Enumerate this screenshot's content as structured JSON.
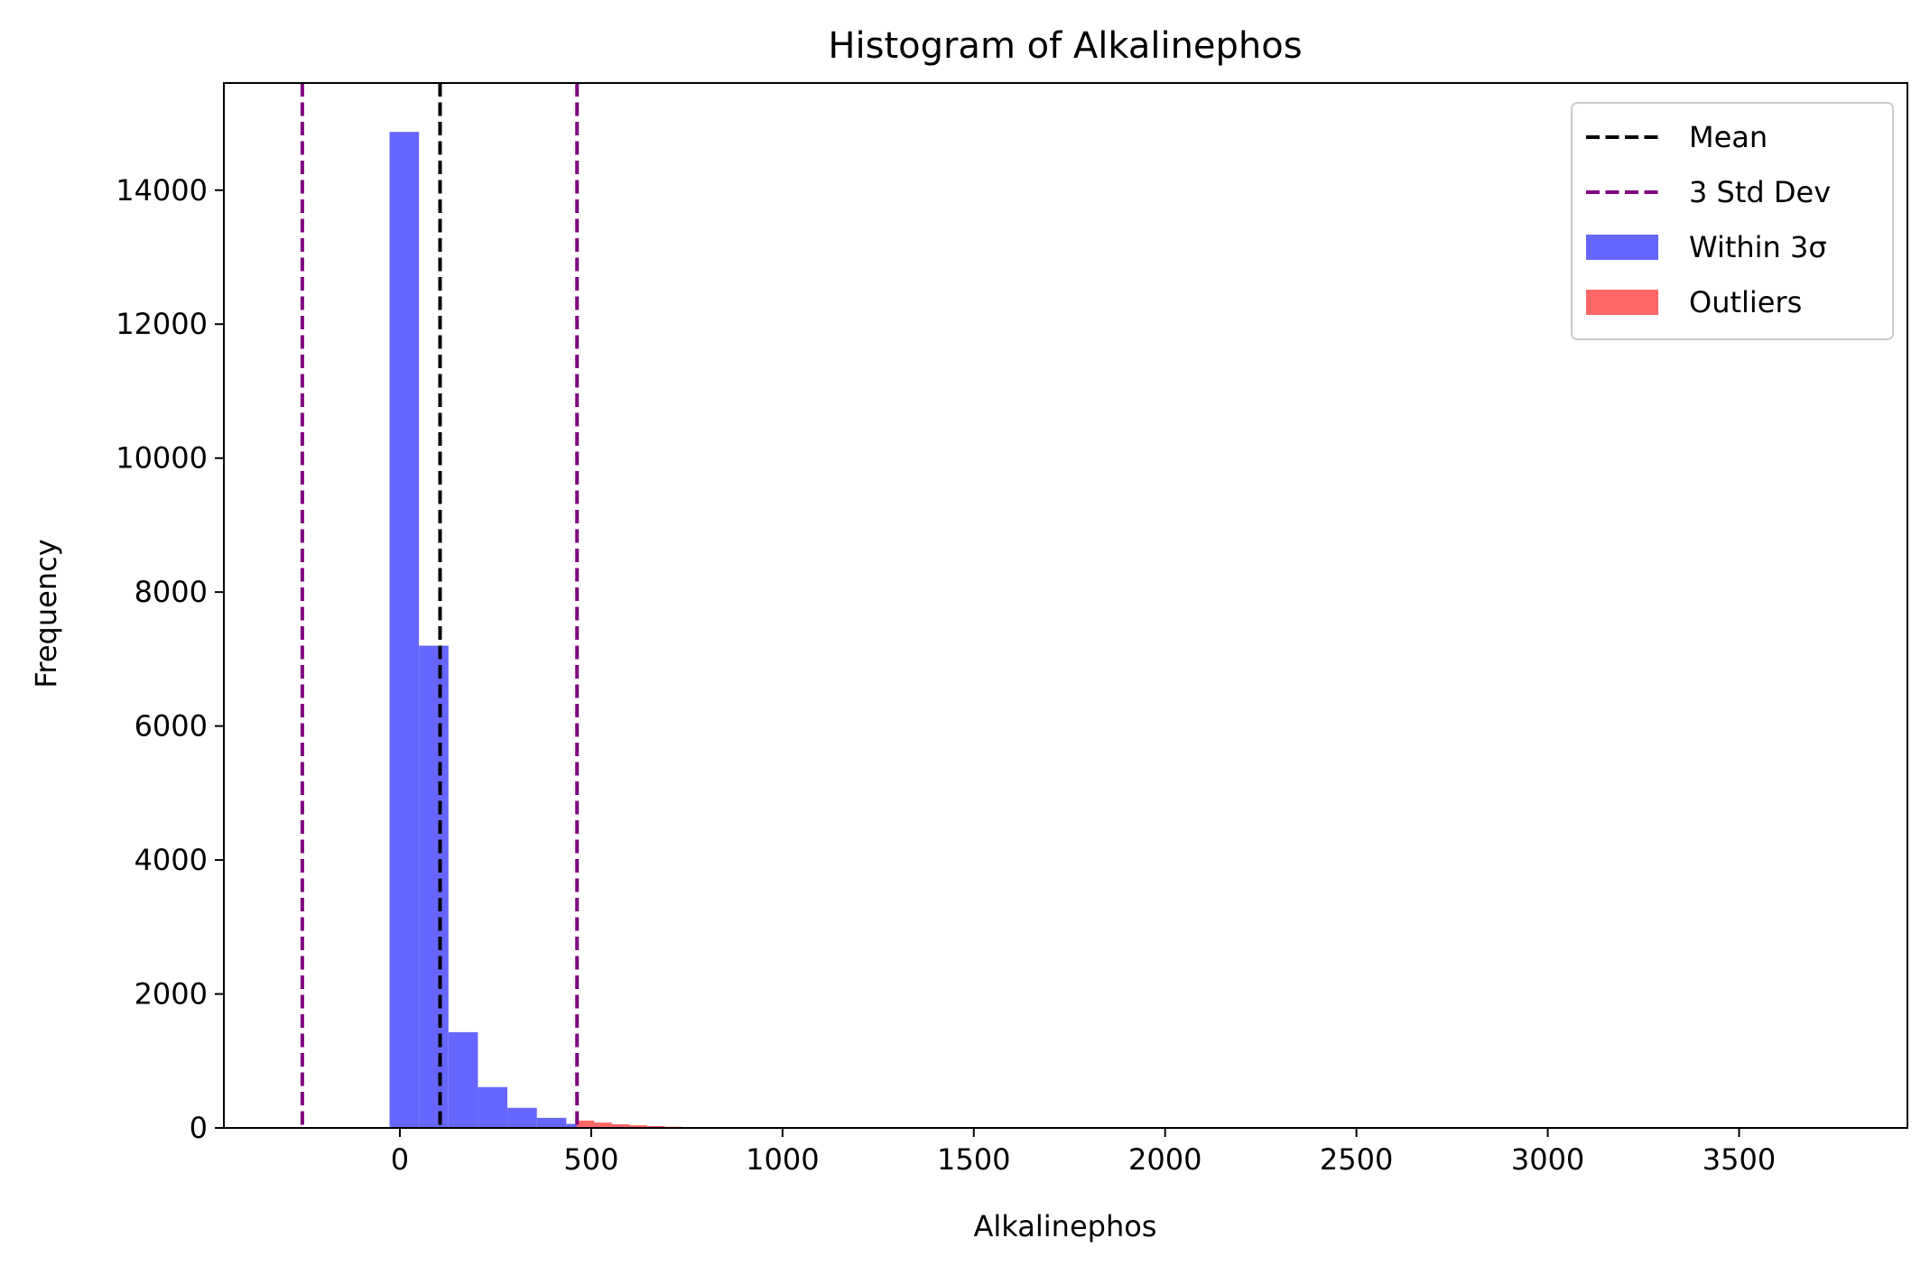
{
  "chart_data": {
    "type": "bar",
    "title": "Histogram of Alkalinephos",
    "xlabel": "Alkalinephos",
    "ylabel": "Frequency",
    "xlim": [
      -460,
      3940
    ],
    "ylim": [
      0,
      15600
    ],
    "xticks": [
      0,
      500,
      1000,
      1500,
      2000,
      2500,
      3000,
      3500
    ],
    "yticks": [
      0,
      2000,
      4000,
      6000,
      8000,
      10000,
      12000,
      14000
    ],
    "grid": false,
    "legend_position": "top-right",
    "series": [
      {
        "name": "Within 3σ",
        "color": "#6666ff",
        "bin_width": 77,
        "bins": [
          {
            "start": -27,
            "value": 14870
          },
          {
            "start": 50,
            "value": 7200
          },
          {
            "start": 127,
            "value": 1430
          },
          {
            "start": 204,
            "value": 610
          },
          {
            "start": 281,
            "value": 300
          },
          {
            "start": 358,
            "value": 150
          },
          {
            "start": 435,
            "value": 60
          }
        ]
      },
      {
        "name": "Outliers",
        "color": "#ff6666",
        "bin_width": 46,
        "bins": [
          {
            "start": 462,
            "value": 110
          },
          {
            "start": 508,
            "value": 80
          },
          {
            "start": 554,
            "value": 55
          },
          {
            "start": 600,
            "value": 40
          },
          {
            "start": 646,
            "value": 28
          },
          {
            "start": 692,
            "value": 18
          },
          {
            "start": 738,
            "value": 12
          },
          {
            "start": 784,
            "value": 8
          },
          {
            "start": 830,
            "value": 5
          }
        ]
      }
    ],
    "reference_lines": [
      {
        "name": "Mean",
        "x": 105,
        "color": "#000000"
      },
      {
        "name": "3 Std Dev",
        "x": -255,
        "color": "#800080"
      },
      {
        "name": "3 Std Dev",
        "x": 463,
        "color": "#800080"
      }
    ],
    "legend": [
      {
        "label": "Mean",
        "kind": "line",
        "color": "#000000"
      },
      {
        "label": "3 Std Dev",
        "kind": "line",
        "color": "#800080"
      },
      {
        "label": "Within 3σ",
        "kind": "patch",
        "color": "#6666ff"
      },
      {
        "label": "Outliers",
        "kind": "patch",
        "color": "#ff6666"
      }
    ]
  }
}
